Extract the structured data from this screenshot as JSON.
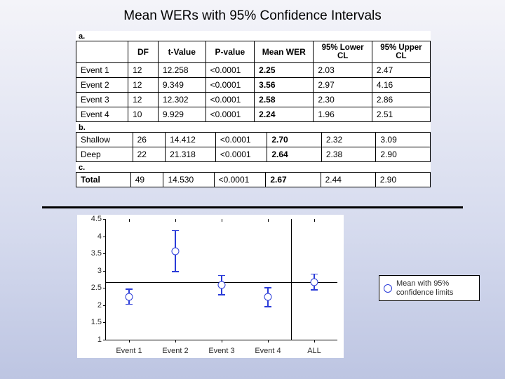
{
  "title": "Mean WERs with 95% Confidence Intervals",
  "table": {
    "columns": [
      "",
      "DF",
      "t-Value",
      "P-value",
      "Mean WER",
      "95% Lower\nCL",
      "95% Upper\nCL"
    ],
    "col_align": [
      "left",
      "left",
      "left",
      "left",
      "left",
      "left",
      "left"
    ],
    "background": "#ffffff",
    "border_color": "#000000",
    "sections": [
      {
        "label": "a.",
        "rows": [
          [
            "Event 1",
            "12",
            "12.258",
            "<0.0001",
            "2.25",
            "2.03",
            "2.47"
          ],
          [
            "Event 2",
            "12",
            "9.349",
            "<0.0001",
            "3.56",
            "2.97",
            "4.16"
          ],
          [
            "Event 3",
            "12",
            "12.302",
            "<0.0001",
            "2.58",
            "2.30",
            "2.86"
          ],
          [
            "Event 4",
            "10",
            "9.929",
            "<0.0001",
            "2.24",
            "1.96",
            "2.51"
          ]
        ]
      },
      {
        "label": "b.",
        "rows": [
          [
            "Shallow",
            "26",
            "14.412",
            "<0.0001",
            "2.70",
            "2.32",
            "3.09"
          ],
          [
            "Deep",
            "22",
            "21.318",
            "<0.0001",
            "2.64",
            "2.38",
            "2.90"
          ]
        ]
      },
      {
        "label": "c.",
        "rows": [
          [
            "Total",
            "49",
            "14.530",
            "<0.0001",
            "2.67",
            "2.44",
            "2.90"
          ]
        ],
        "row_is_total": true
      }
    ]
  },
  "rule_top_y": 294,
  "chart": {
    "type": "error-bar",
    "background_color": "#ffffff",
    "axis_color": "#000000",
    "marker_border_color": "#2a3bd8",
    "marker_fill_color": "#ffffff",
    "error_color": "#2a3bd8",
    "marker_size": 9,
    "line_width": 1.5,
    "x_categories": [
      "Event 1",
      "Event 2",
      "Event 3",
      "Event 4",
      "ALL"
    ],
    "ylim": [
      1,
      4.5
    ],
    "ytick_step": 0.5,
    "ytick_labels": [
      "1",
      "1.5",
      "2",
      "2.5",
      "3",
      "3.5",
      "4",
      "4.5"
    ],
    "label_fontsize": 11,
    "reference_line": 2.67,
    "separator_after_index": 3,
    "points": [
      {
        "label": "Event 1",
        "mean": 2.25,
        "lo": 2.03,
        "hi": 2.47
      },
      {
        "label": "Event 2",
        "mean": 3.56,
        "lo": 2.97,
        "hi": 4.16
      },
      {
        "label": "Event 3",
        "mean": 2.58,
        "lo": 2.3,
        "hi": 2.86
      },
      {
        "label": "Event 4",
        "mean": 2.24,
        "lo": 1.96,
        "hi": 2.51
      },
      {
        "label": "ALL",
        "mean": 2.67,
        "lo": 2.44,
        "hi": 2.9
      }
    ]
  },
  "legend": {
    "text": "Mean with 95% confidence limits",
    "marker_border_color": "#2a3bd8",
    "marker_fill_color": "#ffffff",
    "background": "#ffffff",
    "border_color": "#000000",
    "fontsize": 11
  }
}
